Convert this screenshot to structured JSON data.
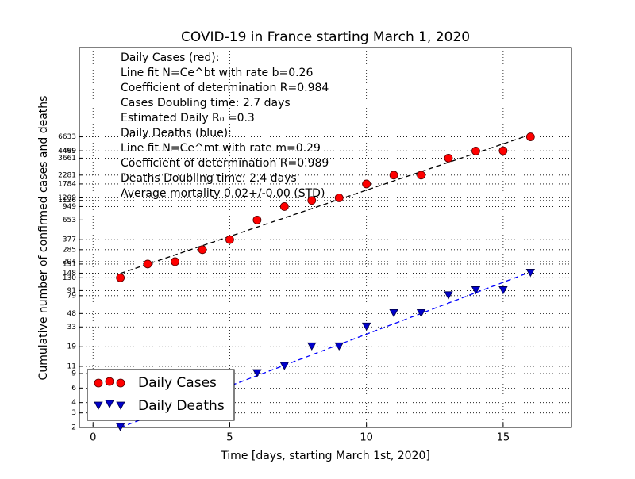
{
  "chart_data": {
    "type": "scatter",
    "title": "COVID-19 in France starting March 1, 2020",
    "xlabel": "Time [days, starting March 1st, 2020]",
    "ylabel": "Cumulative number of confirmed cases and deaths",
    "x": [
      1,
      2,
      3,
      4,
      5,
      6,
      7,
      8,
      9,
      10,
      11,
      12,
      13,
      14,
      15,
      16
    ],
    "series": [
      {
        "name": "Daily Cases",
        "color": "#ff0000",
        "marker": "circle",
        "values": [
          130,
          191,
          204,
          285,
          377,
          653,
          949,
          1126,
          1209,
          1784,
          2281,
          2281,
          3661,
          4469,
          4499,
          6633
        ]
      },
      {
        "name": "Daily Deaths",
        "color": "#0000cc",
        "marker": "triangle-down",
        "values": [
          2,
          3,
          4,
          4,
          6,
          9,
          11,
          19,
          19,
          33,
          48,
          48,
          79,
          91,
          91,
          148
        ]
      }
    ],
    "fits": [
      {
        "color": "#000000",
        "x": [
          1,
          16
        ],
        "values": [
          147,
          7060
        ]
      },
      {
        "color": "#0000ff",
        "x": [
          1,
          16
        ],
        "values": [
          2,
          153
        ]
      }
    ],
    "annotations": [
      "Daily Cases (red):",
      "Line fit N=Ce^bt with rate b=0.26",
      "Coefficient of determination R=0.984",
      "Cases Doubling time: 2.7 days",
      "Estimated Daily R₀ =0.3",
      "Daily Deaths (blue):",
      "Line fit N=Ce^mt with rate m=0.29",
      "Coefficient of determination R=0.989",
      "Deaths Doubling time: 2.4 days",
      "Average mortality 0.02+/-0.00 (STD)"
    ],
    "xlim": [
      -0.5,
      17.5
    ],
    "xticks": [
      0,
      5,
      10,
      15
    ],
    "ylim": [
      2,
      80000
    ],
    "log_y": true,
    "yticks": [
      2,
      3,
      4,
      6,
      9,
      11,
      19,
      33,
      48,
      79,
      91,
      130,
      148,
      191,
      204,
      285,
      377,
      653,
      949,
      1126,
      1209,
      1784,
      2281,
      3661,
      4469,
      4499,
      6633
    ],
    "grid": true,
    "legend": "lower left"
  }
}
